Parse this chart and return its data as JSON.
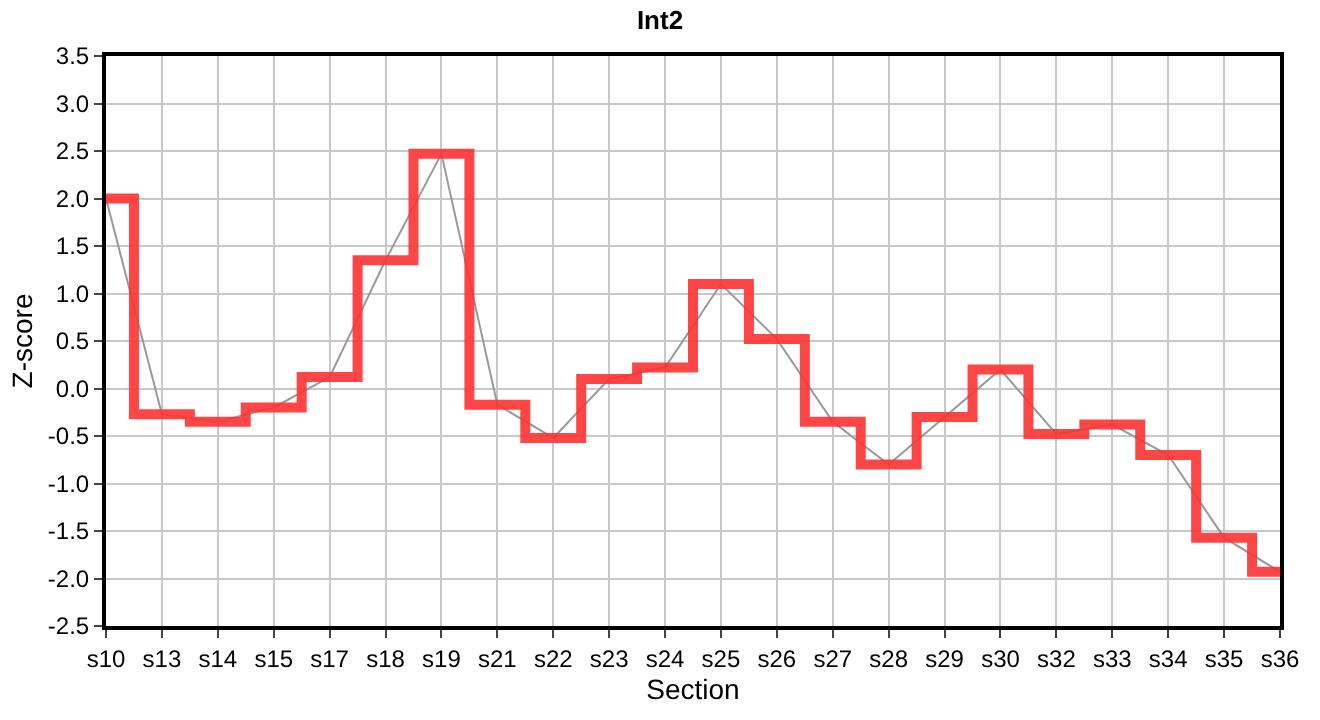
{
  "chart_data": {
    "type": "step",
    "title": "Int2",
    "xlabel": "Section",
    "ylabel": "Z-score",
    "categories": [
      "s10",
      "s13",
      "s14",
      "s15",
      "s17",
      "s18",
      "s19",
      "s21",
      "s22",
      "s23",
      "s24",
      "s25",
      "s26",
      "s27",
      "s28",
      "s29",
      "s30",
      "s32",
      "s33",
      "s34",
      "s35",
      "s36"
    ],
    "series": [
      {
        "type": "line",
        "color": "#999999",
        "values": [
          2.0,
          -0.27,
          -0.35,
          -0.2,
          0.12,
          1.35,
          2.47,
          -0.17,
          -0.52,
          0.1,
          0.22,
          1.1,
          0.52,
          -0.35,
          -0.8,
          -0.3,
          0.2,
          -0.48,
          -0.38,
          -0.7,
          -1.57,
          -1.93
        ]
      },
      {
        "color": "#ff3333",
        "values": [
          2.0,
          -0.27,
          -0.35,
          -0.2,
          0.12,
          1.35,
          2.47,
          -0.17,
          -0.52,
          0.1,
          0.22,
          1.1,
          0.52,
          -0.35,
          -0.8,
          -0.3,
          0.2,
          -0.48,
          -0.38,
          -0.7,
          -1.57,
          -1.93
        ]
      }
    ],
    "ylim": [
      -2.5,
      3.5
    ],
    "yticks": [
      {
        "value": -2.5,
        "label": "-2.5"
      },
      {
        "value": -2,
        "label": "-2.0"
      },
      {
        "value": -1.5,
        "label": "-1.5"
      },
      {
        "value": -1,
        "label": "-1.0"
      },
      {
        "value": -0.5,
        "label": "-0.5"
      },
      {
        "value": 0,
        "label": "0.0"
      },
      {
        "value": 0.5,
        "label": "0.5"
      },
      {
        "value": 1,
        "label": "1.0"
      },
      {
        "value": 1.5,
        "label": "1.5"
      },
      {
        "value": 2,
        "label": "2.0"
      },
      {
        "value": 2.5,
        "label": "2.5"
      },
      {
        "value": 3,
        "label": "3.0"
      },
      {
        "value": 3.5,
        "label": "3.5"
      }
    ],
    "grid": true,
    "legend": false
  }
}
